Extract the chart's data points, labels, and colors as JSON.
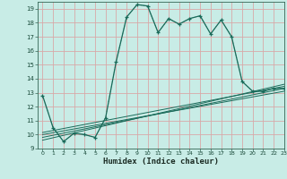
{
  "title": "",
  "xlabel": "Humidex (Indice chaleur)",
  "xlim": [
    -0.5,
    23
  ],
  "ylim": [
    9,
    19.5
  ],
  "yticks": [
    9,
    10,
    11,
    12,
    13,
    14,
    15,
    16,
    17,
    18,
    19
  ],
  "xticks": [
    0,
    1,
    2,
    3,
    4,
    5,
    6,
    7,
    8,
    9,
    10,
    11,
    12,
    13,
    14,
    15,
    16,
    17,
    18,
    19,
    20,
    21,
    22,
    23
  ],
  "bg_color": "#c8ece6",
  "grid_color": "#d8a8a8",
  "line_color": "#1a6b5a",
  "main_line_x": [
    0,
    1,
    2,
    3,
    4,
    5,
    6,
    7,
    8,
    9,
    10,
    11,
    12,
    13,
    14,
    15,
    16,
    17,
    18,
    19,
    20,
    21,
    22,
    23
  ],
  "main_line_y": [
    12.8,
    10.5,
    9.5,
    10.1,
    10.0,
    9.8,
    11.2,
    15.2,
    18.4,
    19.3,
    19.2,
    17.3,
    18.3,
    17.9,
    18.3,
    18.5,
    17.2,
    18.2,
    17.0,
    13.8,
    13.1,
    13.1,
    13.3,
    13.3
  ],
  "ref_lines": [
    {
      "x": [
        0,
        23
      ],
      "y": [
        9.6,
        13.6
      ]
    },
    {
      "x": [
        0,
        23
      ],
      "y": [
        9.8,
        13.3
      ]
    },
    {
      "x": [
        0,
        23
      ],
      "y": [
        10.0,
        13.1
      ]
    },
    {
      "x": [
        0,
        23
      ],
      "y": [
        10.15,
        13.45
      ]
    }
  ],
  "xlabel_fontsize": 6.5,
  "tick_fontsize": 5.0
}
